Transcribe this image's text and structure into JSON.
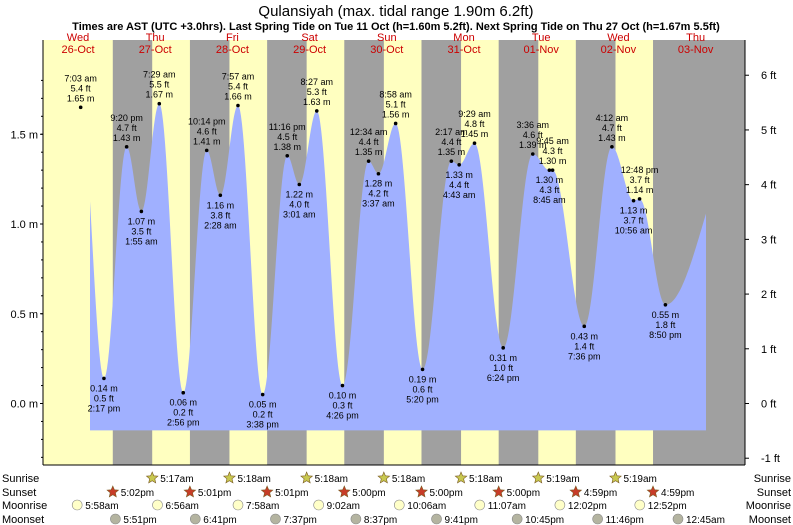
{
  "title": "Qulansiyah (max. tidal range 1.90m 6.2ft)",
  "subtitle": "Times are AST (UTC +3.0hrs). Last Spring Tide on Tue 11 Oct (h=1.60m 5.2ft). Next Spring Tide on Thu 27 Oct (h=1.67m 5.5ft)",
  "colors": {
    "day": "#ffffc0",
    "night": "#a0a0a0",
    "water": "#a0b0ff",
    "sunrise": "#c8c850",
    "sunset": "#c83c28",
    "moonrise": "#ffffc8",
    "moonset": "#b4b4a0",
    "day_label": "#cc0000"
  },
  "chart_data": {
    "type": "area",
    "title": "Qulansiyah (max. tidal range 1.90m 6.2ft)",
    "ylim_m": [
      -0.33,
      1.87
    ],
    "yticks_m": [
      "1.5 m",
      "1.0 m",
      "0.5 m",
      "0.0 m"
    ],
    "yticks_m_values": [
      1.5,
      1.0,
      0.5,
      0.0
    ],
    "yticks_ft": [
      "6 ft",
      "5 ft",
      "4 ft",
      "3 ft",
      "2 ft",
      "1 ft",
      "0 ft",
      "-1 ft"
    ],
    "yticks_ft_values": [
      6,
      5,
      4,
      3,
      2,
      1,
      0,
      -1
    ],
    "days": [
      {
        "weekday": "Wed",
        "date": "26-Oct"
      },
      {
        "weekday": "Thu",
        "date": "27-Oct"
      },
      {
        "weekday": "Fri",
        "date": "28-Oct"
      },
      {
        "weekday": "Sat",
        "date": "29-Oct"
      },
      {
        "weekday": "Sun",
        "date": "30-Oct"
      },
      {
        "weekday": "Mon",
        "date": "31-Oct"
      },
      {
        "weekday": "Tue",
        "date": "01-Nov"
      },
      {
        "weekday": "Wed",
        "date": "02-Nov"
      },
      {
        "weekday": "Thu",
        "date": "03-Nov"
      }
    ],
    "tides": [
      {
        "day": 0,
        "time": "7:03 am",
        "h_m": 1.65,
        "h_ft": "5.4 ft",
        "type": "high"
      },
      {
        "day": 0,
        "time": "2:17 pm",
        "h_m": 0.14,
        "h_ft": "0.5 ft",
        "type": "low"
      },
      {
        "day": 0,
        "time": "9:20 pm",
        "h_m": 1.43,
        "h_ft": "4.7 ft",
        "type": "high"
      },
      {
        "day": 1,
        "time": "1:55 am",
        "h_m": 1.07,
        "h_ft": "3.5 ft",
        "type": "low"
      },
      {
        "day": 1,
        "time": "7:29 am",
        "h_m": 1.67,
        "h_ft": "5.5 ft",
        "type": "high"
      },
      {
        "day": 1,
        "time": "2:56 pm",
        "h_m": 0.06,
        "h_ft": "0.2 ft",
        "type": "low"
      },
      {
        "day": 1,
        "time": "10:14 pm",
        "h_m": 1.41,
        "h_ft": "4.6 ft",
        "type": "high"
      },
      {
        "day": 2,
        "time": "2:28 am",
        "h_m": 1.16,
        "h_ft": "3.8 ft",
        "type": "low"
      },
      {
        "day": 2,
        "time": "7:57 am",
        "h_m": 1.66,
        "h_ft": "5.4 ft",
        "type": "high"
      },
      {
        "day": 2,
        "time": "3:38 pm",
        "h_m": 0.05,
        "h_ft": "0.2 ft",
        "type": "low"
      },
      {
        "day": 2,
        "time": "11:16 pm",
        "h_m": 1.38,
        "h_ft": "4.5 ft",
        "type": "high"
      },
      {
        "day": 3,
        "time": "3:01 am",
        "h_m": 1.22,
        "h_ft": "4.0 ft",
        "type": "low"
      },
      {
        "day": 3,
        "time": "8:27 am",
        "h_m": 1.63,
        "h_ft": "5.3 ft",
        "type": "high"
      },
      {
        "day": 3,
        "time": "4:26 pm",
        "h_m": 0.1,
        "h_ft": "0.3 ft",
        "type": "low"
      },
      {
        "day": 4,
        "time": "12:34 am",
        "h_m": 1.35,
        "h_ft": "4.4 ft",
        "type": "high"
      },
      {
        "day": 4,
        "time": "3:37 am",
        "h_m": 1.28,
        "h_ft": "4.2 ft",
        "type": "low"
      },
      {
        "day": 4,
        "time": "8:58 am",
        "h_m": 1.56,
        "h_ft": "5.1 ft",
        "type": "high"
      },
      {
        "day": 4,
        "time": "5:20 pm",
        "h_m": 0.19,
        "h_ft": "0.6 ft",
        "type": "low"
      },
      {
        "day": 5,
        "time": "2:17 am",
        "h_m": 1.35,
        "h_ft": "4.4 ft",
        "type": "high"
      },
      {
        "day": 5,
        "time": "4:43 am",
        "h_m": 1.33,
        "h_ft": "4.4 ft",
        "type": "low"
      },
      {
        "day": 5,
        "time": "9:29 am",
        "h_m": 1.45,
        "h_ft": "4.8 ft",
        "type": "high"
      },
      {
        "day": 5,
        "time": "6:24 pm",
        "h_m": 0.31,
        "h_ft": "1.0 ft",
        "type": "low"
      },
      {
        "day": 6,
        "time": "3:36 am",
        "h_m": 1.39,
        "h_ft": "4.6 ft",
        "type": "high"
      },
      {
        "day": 6,
        "time": "8:45 am",
        "h_m": 1.3,
        "h_ft": "4.3 ft",
        "type": "low"
      },
      {
        "day": 6,
        "time": "9:45 am",
        "h_m": 1.3,
        "h_ft": "4.3 ft",
        "type": "high"
      },
      {
        "day": 6,
        "time": "7:36 pm",
        "h_m": 0.43,
        "h_ft": "1.4 ft",
        "type": "low"
      },
      {
        "day": 7,
        "time": "4:12 am",
        "h_m": 1.43,
        "h_ft": "4.7 ft",
        "type": "high"
      },
      {
        "day": 7,
        "time": "10:56 am",
        "h_m": 1.13,
        "h_ft": "3.7 ft",
        "type": "low"
      },
      {
        "day": 7,
        "time": "12:48 pm",
        "h_m": 1.14,
        "h_ft": "3.7 ft",
        "type": "high"
      },
      {
        "day": 7,
        "time": "8:50 pm",
        "h_m": 0.55,
        "h_ft": "1.8 ft",
        "type": "low"
      }
    ],
    "sun_moon": {
      "row_labels": [
        "Sunrise",
        "Sunset",
        "Moonrise",
        "Moonset"
      ],
      "sunrise": [
        {
          "day": 1,
          "time": "5:17am"
        },
        {
          "day": 2,
          "time": "5:18am"
        },
        {
          "day": 3,
          "time": "5:18am"
        },
        {
          "day": 4,
          "time": "5:18am"
        },
        {
          "day": 5,
          "time": "5:18am"
        },
        {
          "day": 6,
          "time": "5:19am"
        },
        {
          "day": 7,
          "time": "5:19am"
        }
      ],
      "sunset": [
        {
          "day": 0,
          "time": "5:02pm"
        },
        {
          "day": 1,
          "time": "5:01pm"
        },
        {
          "day": 2,
          "time": "5:01pm"
        },
        {
          "day": 3,
          "time": "5:00pm"
        },
        {
          "day": 4,
          "time": "5:00pm"
        },
        {
          "day": 5,
          "time": "5:00pm"
        },
        {
          "day": 6,
          "time": "4:59pm"
        },
        {
          "day": 7,
          "time": "4:59pm"
        }
      ],
      "moonrise": [
        {
          "day": 0,
          "time": "5:58am"
        },
        {
          "day": 1,
          "time": "6:56am"
        },
        {
          "day": 2,
          "time": "7:58am"
        },
        {
          "day": 3,
          "time": "9:02am"
        },
        {
          "day": 4,
          "time": "10:06am"
        },
        {
          "day": 5,
          "time": "11:07am"
        },
        {
          "day": 6,
          "time": "12:02pm"
        },
        {
          "day": 7,
          "time": "12:52pm"
        }
      ],
      "moonset": [
        {
          "day": 0,
          "time": "5:51pm"
        },
        {
          "day": 1,
          "time": "6:41pm"
        },
        {
          "day": 2,
          "time": "7:37pm"
        },
        {
          "day": 3,
          "time": "8:37pm"
        },
        {
          "day": 4,
          "time": "9:41pm"
        },
        {
          "day": 5,
          "time": "10:45pm"
        },
        {
          "day": 6,
          "time": "11:46pm"
        },
        {
          "day": 8,
          "time": "12:45am"
        }
      ]
    }
  }
}
